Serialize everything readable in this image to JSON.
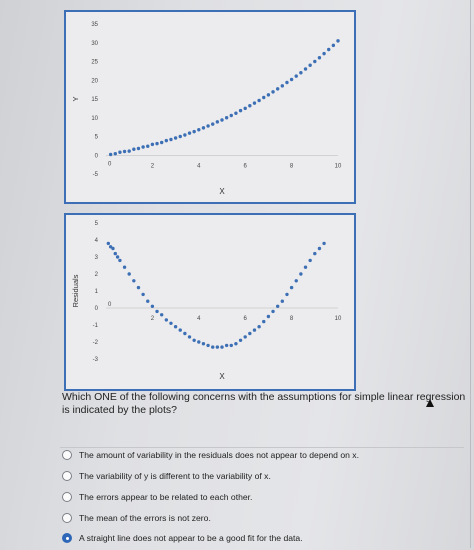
{
  "chart_data": [
    {
      "type": "scatter",
      "xlabel": "X",
      "ylabel": "Y",
      "xlim": [
        0,
        10
      ],
      "ylim": [
        -5,
        35
      ],
      "x_ticks": [
        "2",
        "4",
        "6",
        "8",
        "10"
      ],
      "y_ticks": [
        "35",
        "30",
        "25",
        "20",
        "15",
        "10",
        "5",
        "0",
        "-5"
      ],
      "origin_label": "0",
      "point_color": "#3d6fb5",
      "description": "quadratic curve",
      "points": [
        [
          0.2,
          0.2
        ],
        [
          0.4,
          0.4
        ],
        [
          0.6,
          0.8
        ],
        [
          0.8,
          1.0
        ],
        [
          1.0,
          1.1
        ],
        [
          1.2,
          1.6
        ],
        [
          1.4,
          1.8
        ],
        [
          1.6,
          2.2
        ],
        [
          1.8,
          2.4
        ],
        [
          2.0,
          2.9
        ],
        [
          2.2,
          3.1
        ],
        [
          2.4,
          3.4
        ],
        [
          2.6,
          3.9
        ],
        [
          2.8,
          4.2
        ],
        [
          3.0,
          4.6
        ],
        [
          3.2,
          5.0
        ],
        [
          3.4,
          5.4
        ],
        [
          3.6,
          5.9
        ],
        [
          3.8,
          6.3
        ],
        [
          4.0,
          6.8
        ],
        [
          4.2,
          7.3
        ],
        [
          4.4,
          7.8
        ],
        [
          4.6,
          8.3
        ],
        [
          4.8,
          8.9
        ],
        [
          5.0,
          9.4
        ],
        [
          5.2,
          10.0
        ],
        [
          5.4,
          10.6
        ],
        [
          5.6,
          11.2
        ],
        [
          5.8,
          11.9
        ],
        [
          6.0,
          12.5
        ],
        [
          6.2,
          13.2
        ],
        [
          6.4,
          13.9
        ],
        [
          6.6,
          14.6
        ],
        [
          6.8,
          15.4
        ],
        [
          7.0,
          16.1
        ],
        [
          7.2,
          16.9
        ],
        [
          7.4,
          17.7
        ],
        [
          7.6,
          18.5
        ],
        [
          7.8,
          19.4
        ],
        [
          8.0,
          20.2
        ],
        [
          8.2,
          21.1
        ],
        [
          8.4,
          22.0
        ],
        [
          8.6,
          23.0
        ],
        [
          8.8,
          24.0
        ],
        [
          9.0,
          25.0
        ],
        [
          9.2,
          26.0
        ],
        [
          9.4,
          27.1
        ],
        [
          9.6,
          28.2
        ],
        [
          9.8,
          29.3
        ],
        [
          10.0,
          30.5
        ]
      ]
    },
    {
      "type": "scatter",
      "xlabel": "X",
      "ylabel": "Residuals",
      "xlim": [
        0,
        10
      ],
      "ylim": [
        -3,
        5
      ],
      "x_ticks": [
        "2",
        "4",
        "6",
        "8",
        "10"
      ],
      "y_ticks": [
        "5",
        "4",
        "3",
        "2",
        "1",
        "0",
        "-1",
        "-2",
        "-3"
      ],
      "origin_label": "0",
      "point_color": "#3d6fb5",
      "points": [
        [
          0.1,
          3.8
        ],
        [
          0.2,
          3.6
        ],
        [
          0.3,
          3.5
        ],
        [
          0.4,
          3.2
        ],
        [
          0.5,
          3.0
        ],
        [
          0.6,
          2.8
        ],
        [
          0.8,
          2.4
        ],
        [
          1.0,
          2.0
        ],
        [
          1.2,
          1.6
        ],
        [
          1.4,
          1.2
        ],
        [
          1.6,
          0.8
        ],
        [
          1.8,
          0.4
        ],
        [
          2.0,
          0.1
        ],
        [
          2.2,
          -0.2
        ],
        [
          2.4,
          -0.4
        ],
        [
          2.6,
          -0.7
        ],
        [
          2.8,
          -0.9
        ],
        [
          3.0,
          -1.1
        ],
        [
          3.2,
          -1.3
        ],
        [
          3.4,
          -1.5
        ],
        [
          3.6,
          -1.7
        ],
        [
          3.8,
          -1.9
        ],
        [
          4.0,
          -2.0
        ],
        [
          4.2,
          -2.1
        ],
        [
          4.4,
          -2.2
        ],
        [
          4.6,
          -2.3
        ],
        [
          4.8,
          -2.3
        ],
        [
          5.0,
          -2.3
        ],
        [
          5.2,
          -2.2
        ],
        [
          5.4,
          -2.2
        ],
        [
          5.6,
          -2.1
        ],
        [
          5.8,
          -1.9
        ],
        [
          6.0,
          -1.7
        ],
        [
          6.2,
          -1.5
        ],
        [
          6.4,
          -1.3
        ],
        [
          6.6,
          -1.1
        ],
        [
          6.8,
          -0.8
        ],
        [
          7.0,
          -0.5
        ],
        [
          7.2,
          -0.2
        ],
        [
          7.4,
          0.1
        ],
        [
          7.6,
          0.4
        ],
        [
          7.8,
          0.8
        ],
        [
          8.0,
          1.2
        ],
        [
          8.2,
          1.6
        ],
        [
          8.4,
          2.0
        ],
        [
          8.6,
          2.4
        ],
        [
          8.8,
          2.8
        ],
        [
          9.0,
          3.2
        ],
        [
          9.2,
          3.5
        ],
        [
          9.4,
          3.8
        ]
      ]
    }
  ],
  "question": {
    "text": "Which ONE of the following concerns with the assumptions for simple linear regression is indicated by the plots?"
  },
  "options": [
    {
      "label": "The amount of variability in the residuals does not appear to depend on x.",
      "selected": false
    },
    {
      "label": "The variability of y is different to the variability of x.",
      "selected": false
    },
    {
      "label": "The errors appear to be related to each other.",
      "selected": false
    },
    {
      "label": "The mean of the errors is not zero.",
      "selected": false
    },
    {
      "label": "A straight line does not appear to be a good fit for the data.",
      "selected": true
    }
  ]
}
